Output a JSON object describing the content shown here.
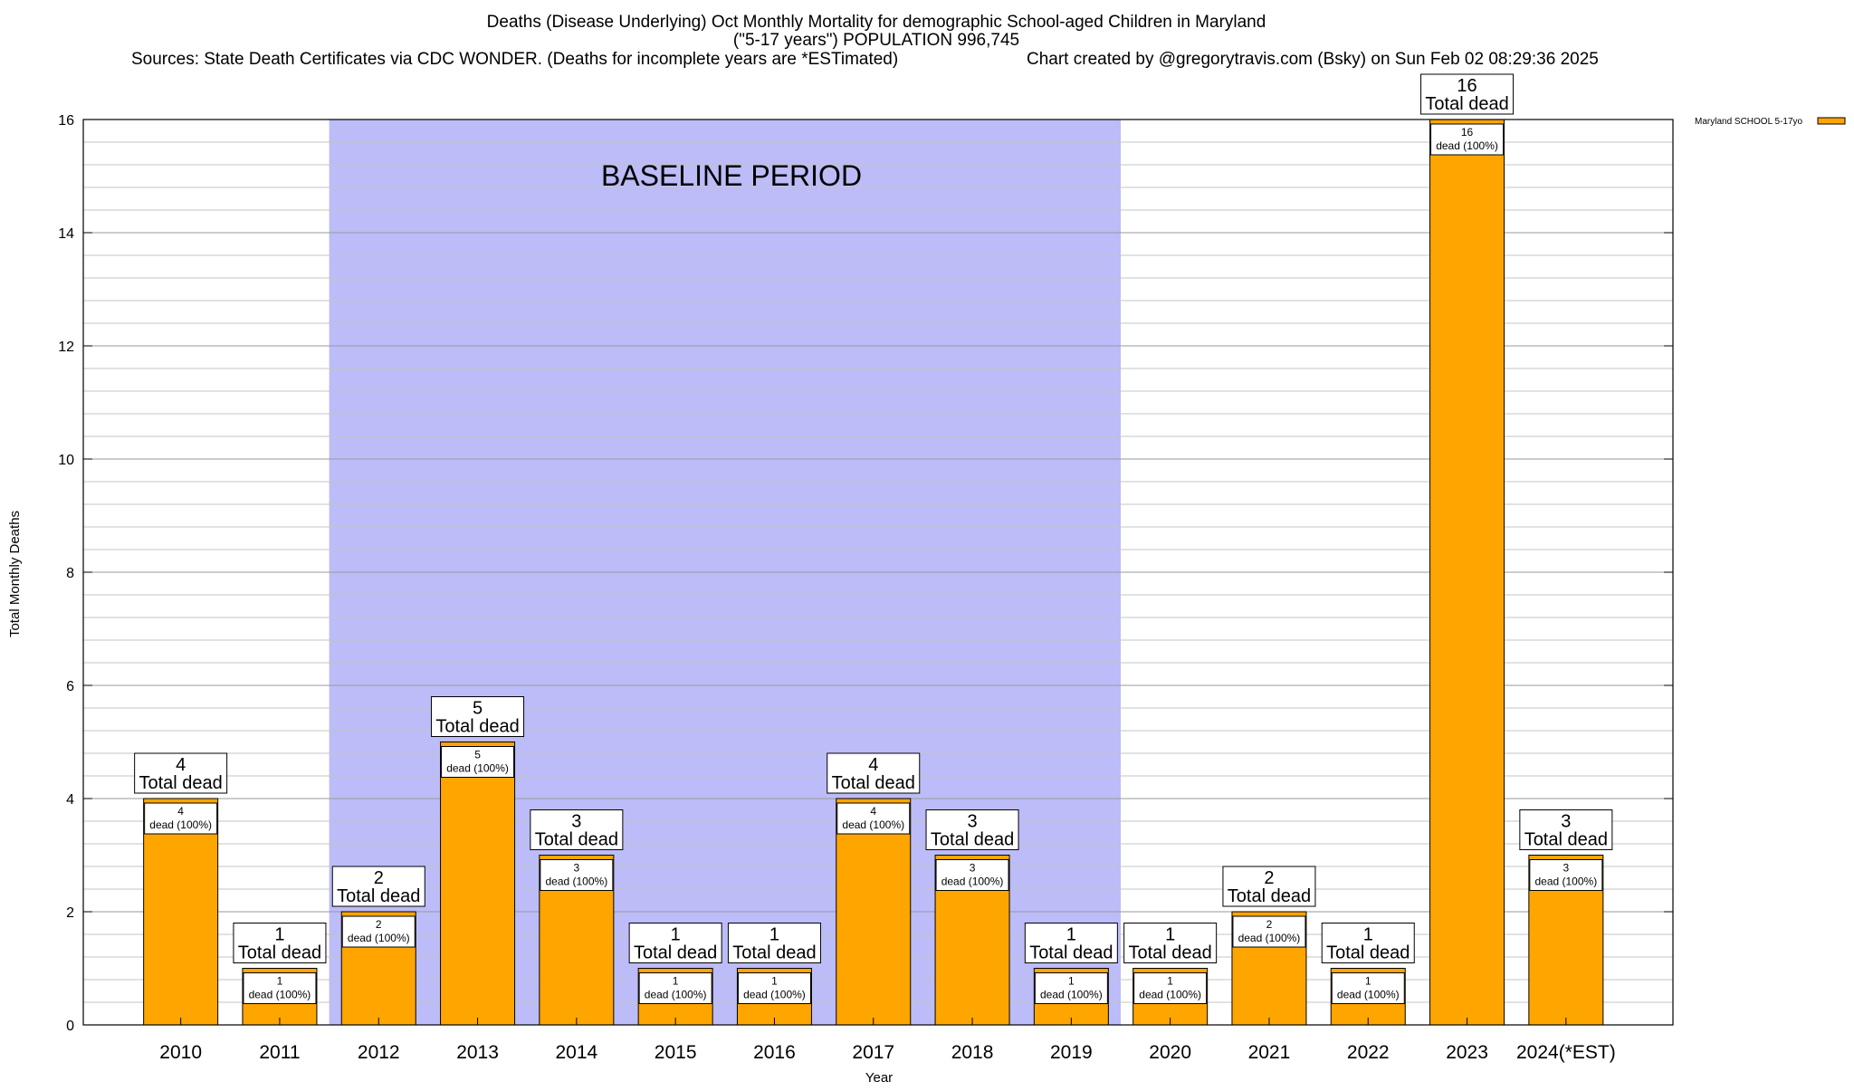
{
  "chart_data": {
    "type": "bar",
    "title_lines": [
      "Deaths (Disease Underlying) Oct Monthly Mortality for demographic School-aged Children in Maryland",
      "(\"5-17 years\") POPULATION 996,745"
    ],
    "sources_text": "Sources: State Death Certificates via CDC WONDER. (Deaths for incomplete years are *ESTimated)",
    "credit_text": "Chart created by @gregorytravis.com (Bsky) on Sun Feb 02 08:29:36 2025",
    "xlabel": "Year",
    "ylabel": "Total Monthly Deaths",
    "ylim": [
      0,
      16
    ],
    "major_ticks": [
      0,
      2,
      4,
      6,
      8,
      10,
      12,
      14,
      16
    ],
    "minor_step": 0.4,
    "grid": true,
    "categories": [
      "2010",
      "2011",
      "2012",
      "2013",
      "2014",
      "2015",
      "2016",
      "2017",
      "2018",
      "2019",
      "2020",
      "2021",
      "2022",
      "2023",
      "2024(*EST)"
    ],
    "series": [
      {
        "name": "Maryland SCHOOL 5-17yo",
        "color": "#ffa500",
        "values": [
          4,
          1,
          2,
          5,
          3,
          1,
          1,
          4,
          3,
          1,
          1,
          2,
          1,
          16,
          3
        ]
      }
    ],
    "total_label_suffix": "Total dead",
    "inner_label_suffix": "dead (100%)",
    "baseline": {
      "label": "BASELINE PERIOD",
      "from_category": "2012",
      "to_category": "2019",
      "color": "#bcbcf8"
    },
    "legend_position": "top-right"
  }
}
